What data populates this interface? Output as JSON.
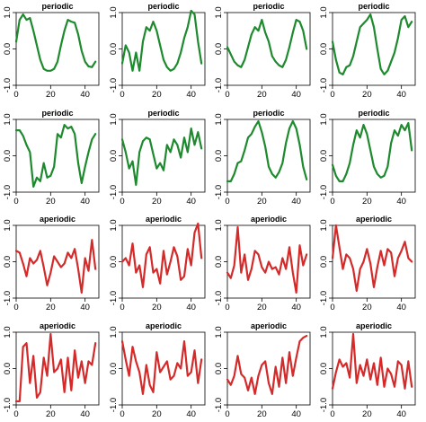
{
  "chart_data": {
    "type": "line",
    "layout": "4x4 grid of small multiples",
    "x_range": [
      0,
      48
    ],
    "y_range": [
      -1.0,
      1.0
    ],
    "x_ticks": [
      "0",
      "20",
      "40"
    ],
    "y_ticks": [
      "-1.0",
      "0.0",
      "1.0"
    ],
    "colors": {
      "periodic": "#1e8a2e",
      "aperiodic": "#d42a2a"
    },
    "grid": false,
    "panels": [
      {
        "title": "periodic",
        "kind": "periodic",
        "x": [
          0,
          2,
          4,
          6,
          8,
          10,
          12,
          14,
          16,
          18,
          20,
          22,
          24,
          26,
          28,
          30,
          32,
          34,
          36,
          38,
          40,
          42,
          44,
          46
        ],
        "y": [
          0.2,
          0.8,
          0.95,
          0.8,
          0.85,
          0.5,
          0.1,
          -0.3,
          -0.55,
          -0.6,
          -0.6,
          -0.55,
          -0.35,
          0.1,
          0.5,
          0.8,
          0.75,
          0.72,
          0.4,
          -0.05,
          -0.35,
          -0.48,
          -0.5,
          -0.35
        ]
      },
      {
        "title": "periodic",
        "kind": "periodic",
        "x": [
          0,
          2,
          4,
          6,
          8,
          10,
          12,
          14,
          16,
          18,
          20,
          22,
          24,
          26,
          28,
          30,
          32,
          34,
          36,
          38,
          40,
          42,
          44,
          46
        ],
        "y": [
          -0.4,
          0.1,
          -0.1,
          -0.6,
          -0.1,
          -0.6,
          0.2,
          0.6,
          0.5,
          0.75,
          0.5,
          0.1,
          -0.3,
          -0.5,
          -0.6,
          -0.55,
          -0.4,
          -0.1,
          0.3,
          0.6,
          1.05,
          0.95,
          0.2,
          -0.4
        ]
      },
      {
        "title": "periodic",
        "kind": "periodic",
        "x": [
          0,
          2,
          4,
          6,
          8,
          10,
          12,
          14,
          16,
          18,
          20,
          22,
          24,
          26,
          28,
          30,
          32,
          34,
          36,
          38,
          40,
          42,
          44,
          46
        ],
        "y": [
          0.05,
          -0.15,
          -0.35,
          -0.45,
          -0.5,
          -0.3,
          0.05,
          0.4,
          0.6,
          0.5,
          0.8,
          0.45,
          0.2,
          -0.2,
          -0.35,
          -0.45,
          -0.5,
          -0.3,
          0.05,
          0.45,
          0.8,
          0.75,
          0.5,
          0.0
        ]
      },
      {
        "title": "periodic",
        "kind": "periodic",
        "x": [
          0,
          2,
          4,
          6,
          8,
          10,
          12,
          14,
          16,
          18,
          20,
          22,
          24,
          26,
          28,
          30,
          32,
          34,
          36,
          38,
          40,
          42,
          44,
          46
        ],
        "y": [
          0.2,
          -0.3,
          -0.65,
          -0.7,
          -0.5,
          -0.45,
          -0.2,
          0.2,
          0.6,
          0.7,
          0.8,
          0.95,
          0.6,
          0.0,
          -0.55,
          -0.7,
          -0.6,
          -0.35,
          -0.1,
          0.3,
          0.8,
          0.9,
          0.6,
          0.75
        ]
      },
      {
        "title": "periodic",
        "kind": "periodic",
        "x": [
          0,
          2,
          4,
          6,
          8,
          10,
          12,
          14,
          16,
          18,
          20,
          22,
          24,
          26,
          28,
          30,
          32,
          34,
          36,
          38,
          40,
          42,
          44,
          46
        ],
        "y": [
          0.7,
          0.7,
          0.55,
          0.3,
          0.1,
          -0.85,
          -0.6,
          -0.7,
          -0.2,
          -0.6,
          -0.55,
          -0.3,
          0.6,
          0.5,
          0.85,
          0.75,
          0.8,
          0.6,
          -0.2,
          -0.75,
          -0.3,
          0.1,
          0.45,
          0.6
        ]
      },
      {
        "title": "periodic",
        "kind": "periodic",
        "x": [
          0,
          2,
          4,
          6,
          8,
          10,
          12,
          14,
          16,
          18,
          20,
          22,
          24,
          26,
          28,
          30,
          32,
          34,
          36,
          38,
          40,
          42,
          44,
          46
        ],
        "y": [
          0.45,
          0.1,
          -0.35,
          -0.15,
          -0.8,
          0.1,
          0.4,
          0.5,
          0.45,
          0.05,
          -0.35,
          -0.2,
          -0.4,
          0.3,
          0.1,
          0.45,
          0.3,
          -0.05,
          0.5,
          0.1,
          0.75,
          0.3,
          0.65,
          0.2
        ]
      },
      {
        "title": "periodic",
        "kind": "periodic",
        "x": [
          0,
          2,
          4,
          6,
          8,
          10,
          12,
          14,
          16,
          18,
          20,
          22,
          24,
          26,
          28,
          30,
          32,
          34,
          36,
          38,
          40,
          42,
          44,
          46
        ],
        "y": [
          -0.7,
          -0.7,
          -0.5,
          -0.2,
          -0.15,
          0.15,
          0.5,
          0.6,
          0.8,
          0.95,
          0.65,
          0.25,
          -0.3,
          -0.5,
          -0.6,
          -0.45,
          -0.2,
          0.35,
          0.75,
          0.95,
          0.75,
          0.3,
          -0.3,
          -0.65
        ]
      },
      {
        "title": "periodic",
        "kind": "periodic",
        "x": [
          0,
          2,
          4,
          6,
          8,
          10,
          12,
          14,
          16,
          18,
          20,
          22,
          24,
          26,
          28,
          30,
          32,
          34,
          36,
          38,
          40,
          42,
          44,
          46
        ],
        "y": [
          -0.25,
          -0.55,
          -0.7,
          -0.7,
          -0.5,
          -0.2,
          0.3,
          0.7,
          0.5,
          0.85,
          0.6,
          0.15,
          -0.3,
          -0.5,
          -0.6,
          -0.55,
          -0.3,
          0.35,
          0.7,
          0.55,
          0.85,
          0.7,
          0.9,
          0.15
        ]
      },
      {
        "title": "aperiodic",
        "kind": "aperiodic",
        "x": [
          0,
          2,
          4,
          6,
          8,
          10,
          12,
          14,
          16,
          18,
          20,
          22,
          24,
          26,
          28,
          30,
          32,
          34,
          36,
          38,
          40,
          42,
          44,
          46
        ],
        "y": [
          0.3,
          0.25,
          -0.05,
          -0.4,
          0.1,
          -0.05,
          0.05,
          0.3,
          -0.15,
          -0.65,
          -0.3,
          0.15,
          0.0,
          -0.15,
          -0.05,
          0.25,
          0.1,
          0.35,
          -0.2,
          -0.85,
          0.1,
          -0.25,
          0.6,
          -0.2
        ]
      },
      {
        "title": "aperiodic",
        "kind": "aperiodic",
        "x": [
          0,
          2,
          4,
          6,
          8,
          10,
          12,
          14,
          16,
          18,
          20,
          22,
          24,
          26,
          28,
          30,
          32,
          34,
          36,
          38,
          40,
          42,
          44,
          46
        ],
        "y": [
          0.0,
          0.1,
          -0.1,
          0.5,
          -0.3,
          -0.1,
          -0.7,
          0.2,
          0.4,
          -0.3,
          -0.2,
          -0.6,
          0.3,
          -0.35,
          0.0,
          0.4,
          0.15,
          -0.5,
          -0.4,
          0.35,
          -0.1,
          0.8,
          1.05,
          0.1
        ]
      },
      {
        "title": "aperiodic",
        "kind": "aperiodic",
        "x": [
          0,
          2,
          4,
          6,
          8,
          10,
          12,
          14,
          16,
          18,
          20,
          22,
          24,
          26,
          28,
          30,
          32,
          34,
          36,
          38,
          40,
          42,
          44,
          46
        ],
        "y": [
          -0.3,
          -0.45,
          -0.1,
          0.95,
          -0.3,
          0.2,
          -0.5,
          -0.2,
          0.3,
          0.2,
          -0.15,
          -0.3,
          0.0,
          -0.2,
          -0.15,
          -0.35,
          0.1,
          -0.2,
          0.4,
          -0.3,
          -0.85,
          0.45,
          -0.1,
          0.2
        ]
      },
      {
        "title": "aperiodic",
        "kind": "aperiodic",
        "x": [
          0,
          2,
          4,
          6,
          8,
          10,
          12,
          14,
          16,
          18,
          20,
          22,
          24,
          26,
          28,
          30,
          32,
          34,
          36,
          38,
          40,
          42,
          44,
          46
        ],
        "y": [
          0.1,
          1.0,
          0.4,
          -0.2,
          0.2,
          0.1,
          -0.2,
          -0.8,
          -0.2,
          0.0,
          0.35,
          -0.05,
          -0.7,
          -0.15,
          0.3,
          -0.1,
          0.35,
          0.25,
          -0.4,
          0.1,
          0.3,
          0.55,
          0.1,
          0.0
        ]
      },
      {
        "title": "aperiodic",
        "kind": "aperiodic",
        "x": [
          0,
          2,
          4,
          6,
          8,
          10,
          12,
          14,
          16,
          18,
          20,
          22,
          24,
          26,
          28,
          30,
          32,
          34,
          36,
          38,
          40,
          42,
          44,
          46
        ],
        "y": [
          -0.9,
          -0.9,
          0.6,
          0.7,
          -0.4,
          0.35,
          -0.8,
          -0.65,
          0.3,
          -0.2,
          0.95,
          -0.1,
          0.0,
          0.25,
          -0.65,
          0.3,
          -0.6,
          0.5,
          -0.25,
          0.2,
          -0.4,
          0.2,
          0.1,
          0.7
        ]
      },
      {
        "title": "aperiodic",
        "kind": "aperiodic",
        "x": [
          0,
          2,
          4,
          6,
          8,
          10,
          12,
          14,
          16,
          18,
          20,
          22,
          24,
          26,
          28,
          30,
          32,
          34,
          36,
          38,
          40,
          42,
          44,
          46
        ],
        "y": [
          0.75,
          0.25,
          -0.2,
          0.6,
          0.2,
          -0.1,
          -0.7,
          0.1,
          -0.45,
          -0.65,
          0.45,
          -0.1,
          0.05,
          0.2,
          -0.3,
          -0.2,
          0.15,
          0.0,
          0.75,
          -0.2,
          -0.1,
          0.5,
          -0.4,
          0.25
        ]
      },
      {
        "title": "aperiodic",
        "kind": "aperiodic",
        "x": [
          0,
          2,
          4,
          6,
          8,
          10,
          12,
          14,
          16,
          18,
          20,
          22,
          24,
          26,
          28,
          30,
          32,
          34,
          36,
          38,
          40,
          42,
          44,
          46
        ],
        "y": [
          -0.3,
          -0.45,
          -0.2,
          0.35,
          -0.15,
          -0.25,
          -0.6,
          -0.25,
          -0.7,
          -0.2,
          0.1,
          0.2,
          -0.4,
          -0.7,
          0.05,
          -0.5,
          0.3,
          -0.4,
          0.45,
          -0.2,
          0.3,
          0.75,
          0.85,
          0.9
        ]
      },
      {
        "title": "aperiodic",
        "kind": "aperiodic",
        "x": [
          0,
          2,
          4,
          6,
          8,
          10,
          12,
          14,
          16,
          18,
          20,
          22,
          24,
          26,
          28,
          30,
          32,
          34,
          36,
          38,
          40,
          42,
          44,
          46
        ],
        "y": [
          -0.55,
          -0.1,
          0.25,
          0.05,
          0.15,
          -0.25,
          0.95,
          -0.4,
          0.1,
          -0.2,
          0.25,
          -0.3,
          0.15,
          -0.45,
          0.3,
          -0.5,
          0.0,
          -0.15,
          -0.5,
          0.2,
          0.1,
          -0.55,
          0.2,
          -0.5
        ]
      }
    ]
  }
}
